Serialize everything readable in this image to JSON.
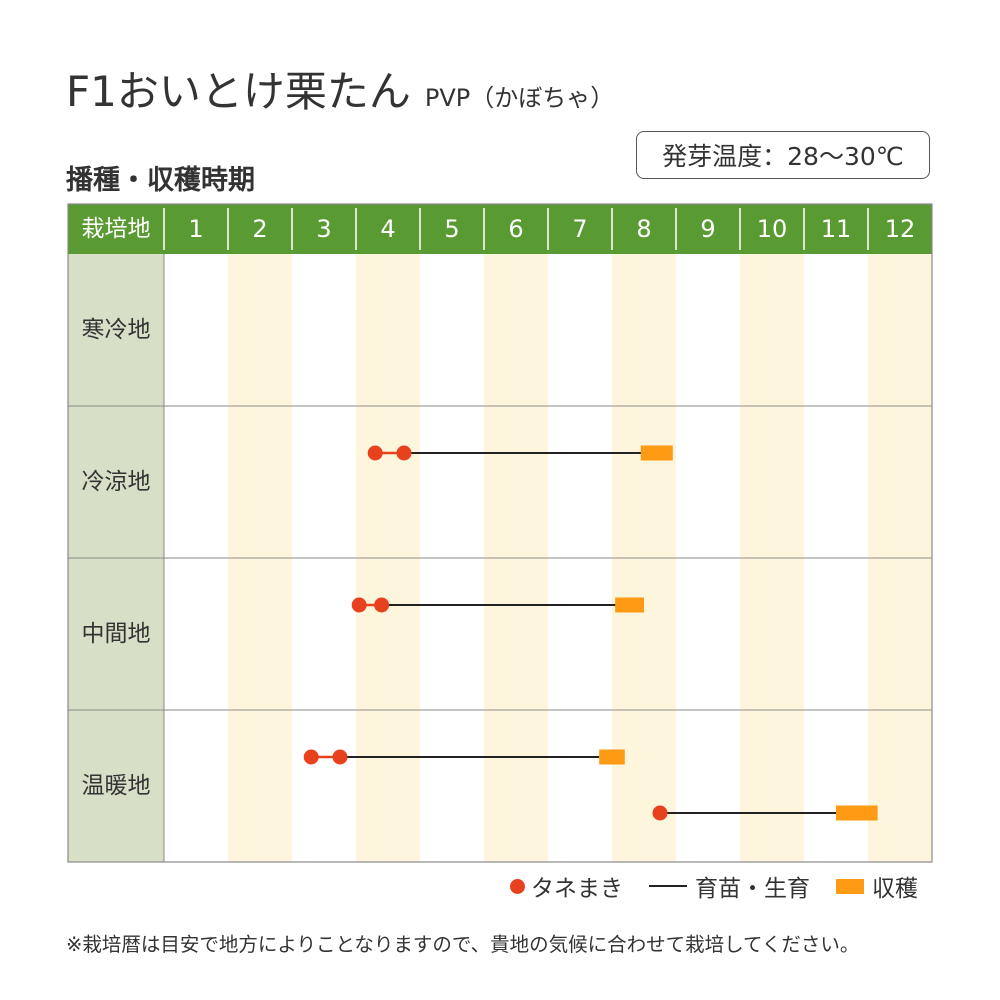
{
  "title": {
    "main": "F1おいとけ栗たん",
    "sub": "PVP（かぼちゃ）"
  },
  "subheading": "播種・収穫時期",
  "germination_temp": "発芽温度：28～30℃",
  "colors": {
    "header_bg": "#5a9a32",
    "header_text": "#ffffff",
    "region_bg": "#d7e0c7",
    "even_month_bg": "#fdf5dc",
    "sowing": "#e8411e",
    "growing": "#222222",
    "harvest": "#ff9a14",
    "grid": "#8a8a8a"
  },
  "legend": {
    "sowing": "タネまき",
    "growing": "育苗・生育",
    "harvest": "収穫"
  },
  "footnote": "※栽培暦は目安で地方によりことなりますので、貴地の気候に合わせて栽培してください。",
  "chart_data": {
    "type": "table",
    "corner_label": "栽培地",
    "months": [
      "1",
      "2",
      "3",
      "4",
      "5",
      "6",
      "7",
      "8",
      "9",
      "10",
      "11",
      "12"
    ],
    "shaded_months": [
      2,
      4,
      6,
      8,
      10,
      12
    ],
    "regions": [
      {
        "name": "寒冷地",
        "schedules": []
      },
      {
        "name": "冷涼地",
        "schedules": [
          {
            "sowing": [
              4.3,
              4.75
            ],
            "growing": [
              4.75,
              8.5
            ],
            "harvest": [
              8.45,
              8.95
            ]
          }
        ]
      },
      {
        "name": "中間地",
        "schedules": [
          {
            "sowing": [
              4.05,
              4.4
            ],
            "growing": [
              4.4,
              8.1
            ],
            "harvest": [
              8.05,
              8.5
            ]
          }
        ]
      },
      {
        "name": "温暖地",
        "schedules": [
          {
            "sowing": [
              3.3,
              3.75
            ],
            "growing": [
              3.75,
              7.8
            ],
            "harvest": [
              7.8,
              8.2
            ]
          },
          {
            "sowing": [
              8.75,
              8.75
            ],
            "growing": [
              8.75,
              11.5
            ],
            "harvest": [
              11.5,
              12.15
            ]
          }
        ]
      }
    ]
  }
}
